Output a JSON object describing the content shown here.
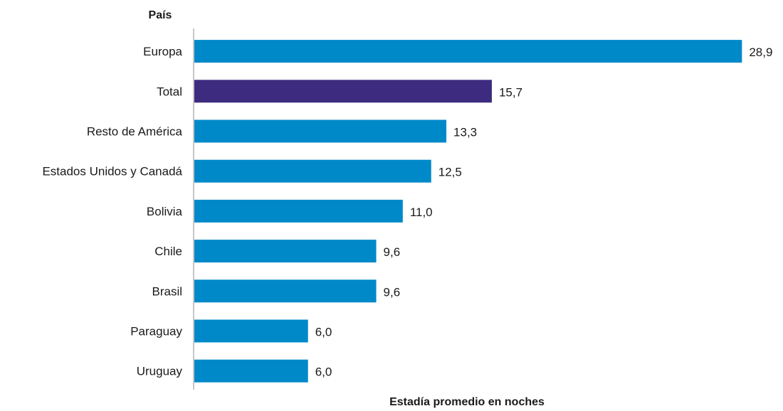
{
  "chart_data": {
    "type": "bar",
    "orientation": "horizontal",
    "ylabel": "País",
    "xlabel": "Estadía promedio en noches",
    "categories": [
      "Europa",
      "Total",
      "Resto de América",
      "Estados Unidos y Canadá",
      "Bolivia",
      "Chile",
      "Brasil",
      "Paraguay",
      "Uruguay"
    ],
    "values": [
      28.9,
      15.7,
      13.3,
      12.5,
      11.0,
      9.6,
      9.6,
      6.0,
      6.0
    ],
    "value_labels": [
      "28,9",
      "15,7",
      "13,3",
      "12,5",
      "11,0",
      "9,6",
      "9,6",
      "6,0",
      "6,0"
    ],
    "highlight_category": "Total",
    "xlim": [
      0,
      29
    ],
    "grid": false,
    "legend": "none",
    "colors": {
      "bar": "#0089c9",
      "highlight": "#3d2b7f",
      "axis": "#8c8c8c",
      "text": "#1a1a1a"
    }
  }
}
